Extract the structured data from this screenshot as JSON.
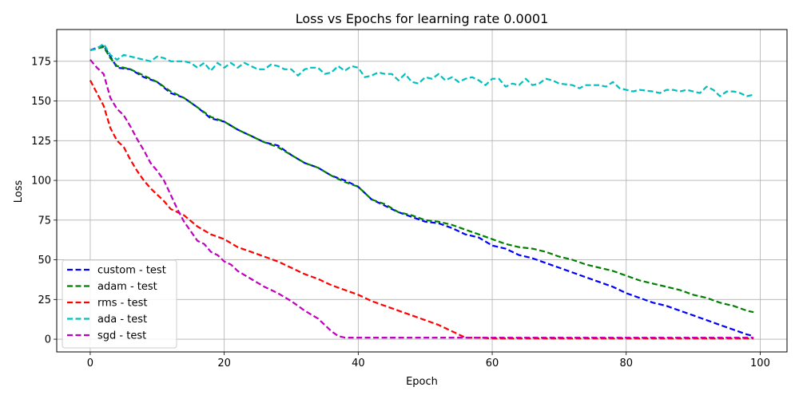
{
  "chart_data": {
    "type": "line",
    "title": "Loss vs Epochs for learning rate 0.0001",
    "xlabel": "Epoch",
    "ylabel": "Loss",
    "xlim": [
      -5,
      104
    ],
    "ylim": [
      -8,
      195
    ],
    "xticks": [
      0,
      20,
      40,
      60,
      80,
      100
    ],
    "yticks": [
      0,
      25,
      50,
      75,
      100,
      125,
      150,
      175
    ],
    "grid": true,
    "legend_position": "lower-left",
    "series": [
      {
        "name": "custom - test",
        "color": "#0000ff",
        "points": [
          [
            0,
            182
          ],
          [
            2,
            185
          ],
          [
            3,
            178
          ],
          [
            4,
            171
          ],
          [
            6,
            170
          ],
          [
            8,
            165
          ],
          [
            10,
            162
          ],
          [
            12,
            155
          ],
          [
            14,
            152
          ],
          [
            16,
            146
          ],
          [
            18,
            139
          ],
          [
            20,
            137
          ],
          [
            22,
            132
          ],
          [
            24,
            128
          ],
          [
            26,
            124
          ],
          [
            28,
            122
          ],
          [
            30,
            116
          ],
          [
            32,
            111
          ],
          [
            34,
            108
          ],
          [
            36,
            103
          ],
          [
            38,
            100
          ],
          [
            40,
            96
          ],
          [
            42,
            88
          ],
          [
            44,
            84
          ],
          [
            46,
            80
          ],
          [
            48,
            77
          ],
          [
            50,
            74
          ],
          [
            52,
            73
          ],
          [
            54,
            70
          ],
          [
            56,
            66
          ],
          [
            58,
            64
          ],
          [
            60,
            59
          ],
          [
            62,
            57
          ],
          [
            64,
            53
          ],
          [
            66,
            51
          ],
          [
            68,
            48
          ],
          [
            70,
            45
          ],
          [
            72,
            42
          ],
          [
            74,
            39
          ],
          [
            76,
            36
          ],
          [
            78,
            33
          ],
          [
            80,
            29
          ],
          [
            82,
            26
          ],
          [
            84,
            23
          ],
          [
            86,
            21
          ],
          [
            88,
            18
          ],
          [
            90,
            15
          ],
          [
            92,
            12
          ],
          [
            94,
            9
          ],
          [
            96,
            6
          ],
          [
            98,
            3
          ],
          [
            99,
            2
          ]
        ]
      },
      {
        "name": "adam - test",
        "color": "#008000",
        "points": [
          [
            0,
            182
          ],
          [
            2,
            184
          ],
          [
            3,
            177
          ],
          [
            4,
            172
          ],
          [
            6,
            170
          ],
          [
            8,
            166
          ],
          [
            10,
            162
          ],
          [
            12,
            156
          ],
          [
            14,
            152
          ],
          [
            16,
            146
          ],
          [
            18,
            140
          ],
          [
            20,
            137
          ],
          [
            22,
            132
          ],
          [
            24,
            128
          ],
          [
            26,
            124
          ],
          [
            28,
            121
          ],
          [
            30,
            116
          ],
          [
            32,
            111
          ],
          [
            34,
            108
          ],
          [
            36,
            103
          ],
          [
            38,
            99
          ],
          [
            40,
            96
          ],
          [
            42,
            88
          ],
          [
            44,
            85
          ],
          [
            46,
            80
          ],
          [
            48,
            78
          ],
          [
            50,
            75
          ],
          [
            52,
            74
          ],
          [
            54,
            72
          ],
          [
            56,
            69
          ],
          [
            58,
            66
          ],
          [
            60,
            63
          ],
          [
            62,
            60
          ],
          [
            64,
            58
          ],
          [
            66,
            57
          ],
          [
            68,
            55
          ],
          [
            70,
            52
          ],
          [
            72,
            50
          ],
          [
            74,
            47
          ],
          [
            76,
            45
          ],
          [
            78,
            43
          ],
          [
            80,
            40
          ],
          [
            82,
            37
          ],
          [
            84,
            35
          ],
          [
            86,
            33
          ],
          [
            88,
            31
          ],
          [
            90,
            28
          ],
          [
            92,
            26
          ],
          [
            94,
            23
          ],
          [
            96,
            21
          ],
          [
            98,
            18
          ],
          [
            99,
            17
          ]
        ]
      },
      {
        "name": "rms - test",
        "color": "#ff0000",
        "points": [
          [
            0,
            163
          ],
          [
            1,
            155
          ],
          [
            2,
            147
          ],
          [
            3,
            133
          ],
          [
            4,
            125
          ],
          [
            5,
            121
          ],
          [
            6,
            113
          ],
          [
            7,
            106
          ],
          [
            8,
            100
          ],
          [
            9,
            95
          ],
          [
            10,
            91
          ],
          [
            11,
            87
          ],
          [
            12,
            82
          ],
          [
            14,
            78
          ],
          [
            16,
            71
          ],
          [
            18,
            66
          ],
          [
            20,
            63
          ],
          [
            22,
            58
          ],
          [
            24,
            55
          ],
          [
            26,
            52
          ],
          [
            28,
            49
          ],
          [
            30,
            45
          ],
          [
            32,
            41
          ],
          [
            34,
            38
          ],
          [
            36,
            34
          ],
          [
            38,
            31
          ],
          [
            40,
            28
          ],
          [
            42,
            24
          ],
          [
            44,
            21
          ],
          [
            46,
            18
          ],
          [
            48,
            15
          ],
          [
            50,
            12
          ],
          [
            52,
            9
          ],
          [
            54,
            5
          ],
          [
            56,
            1
          ],
          [
            58,
            1
          ],
          [
            60,
            0.5
          ],
          [
            70,
            0.5
          ],
          [
            80,
            0.5
          ],
          [
            90,
            0.5
          ],
          [
            99,
            0.5
          ]
        ]
      },
      {
        "name": "ada - test",
        "color": "#00bfbf",
        "points": [
          [
            0,
            182
          ],
          [
            1,
            183
          ],
          [
            2,
            186
          ],
          [
            3,
            179
          ],
          [
            4,
            176
          ],
          [
            5,
            179
          ],
          [
            6,
            178
          ],
          [
            7,
            177
          ],
          [
            8,
            176
          ],
          [
            9,
            175
          ],
          [
            10,
            178
          ],
          [
            11,
            177
          ],
          [
            12,
            175
          ],
          [
            14,
            175
          ],
          [
            15,
            174
          ],
          [
            16,
            171
          ],
          [
            17,
            174
          ],
          [
            18,
            169
          ],
          [
            19,
            174
          ],
          [
            20,
            171
          ],
          [
            21,
            174
          ],
          [
            22,
            171
          ],
          [
            23,
            174
          ],
          [
            24,
            172
          ],
          [
            25,
            170
          ],
          [
            26,
            170
          ],
          [
            27,
            173
          ],
          [
            28,
            172
          ],
          [
            29,
            170
          ],
          [
            30,
            170
          ],
          [
            31,
            166
          ],
          [
            32,
            170
          ],
          [
            33,
            171
          ],
          [
            34,
            171
          ],
          [
            35,
            167
          ],
          [
            36,
            168
          ],
          [
            37,
            172
          ],
          [
            38,
            169
          ],
          [
            39,
            172
          ],
          [
            40,
            171
          ],
          [
            41,
            165
          ],
          [
            42,
            166
          ],
          [
            43,
            168
          ],
          [
            44,
            167
          ],
          [
            45,
            167
          ],
          [
            46,
            163
          ],
          [
            47,
            167
          ],
          [
            48,
            162
          ],
          [
            49,
            161
          ],
          [
            50,
            165
          ],
          [
            51,
            164
          ],
          [
            52,
            167
          ],
          [
            53,
            163
          ],
          [
            54,
            165
          ],
          [
            55,
            162
          ],
          [
            56,
            164
          ],
          [
            57,
            165
          ],
          [
            58,
            163
          ],
          [
            59,
            160
          ],
          [
            60,
            164
          ],
          [
            61,
            164
          ],
          [
            62,
            159
          ],
          [
            63,
            161
          ],
          [
            64,
            160
          ],
          [
            65,
            164
          ],
          [
            66,
            160
          ],
          [
            67,
            161
          ],
          [
            68,
            164
          ],
          [
            69,
            163
          ],
          [
            70,
            161
          ],
          [
            72,
            160
          ],
          [
            73,
            158
          ],
          [
            74,
            160
          ],
          [
            76,
            160
          ],
          [
            77,
            159
          ],
          [
            78,
            162
          ],
          [
            79,
            158
          ],
          [
            80,
            157
          ],
          [
            81,
            156
          ],
          [
            82,
            157
          ],
          [
            84,
            156
          ],
          [
            85,
            155
          ],
          [
            86,
            157
          ],
          [
            87,
            157
          ],
          [
            88,
            156
          ],
          [
            89,
            157
          ],
          [
            90,
            156
          ],
          [
            91,
            155
          ],
          [
            92,
            159
          ],
          [
            93,
            157
          ],
          [
            94,
            153
          ],
          [
            95,
            156
          ],
          [
            96,
            156
          ],
          [
            97,
            155
          ],
          [
            98,
            153
          ],
          [
            99,
            154
          ]
        ]
      },
      {
        "name": "sgd - test",
        "color": "#bf00bf",
        "points": [
          [
            0,
            176
          ],
          [
            1,
            171
          ],
          [
            2,
            167
          ],
          [
            3,
            152
          ],
          [
            4,
            145
          ],
          [
            5,
            141
          ],
          [
            6,
            134
          ],
          [
            7,
            126
          ],
          [
            8,
            119
          ],
          [
            9,
            111
          ],
          [
            10,
            106
          ],
          [
            11,
            100
          ],
          [
            12,
            91
          ],
          [
            13,
            82
          ],
          [
            14,
            74
          ],
          [
            15,
            68
          ],
          [
            16,
            62
          ],
          [
            17,
            60
          ],
          [
            18,
            55
          ],
          [
            19,
            53
          ],
          [
            20,
            49
          ],
          [
            21,
            47
          ],
          [
            22,
            43
          ],
          [
            24,
            38
          ],
          [
            26,
            33
          ],
          [
            28,
            29
          ],
          [
            30,
            24
          ],
          [
            32,
            18
          ],
          [
            34,
            13
          ],
          [
            35,
            9
          ],
          [
            36,
            5
          ],
          [
            37,
            2
          ],
          [
            38,
            1
          ],
          [
            40,
            1
          ],
          [
            50,
            1
          ],
          [
            60,
            1
          ],
          [
            70,
            1
          ],
          [
            80,
            1
          ],
          [
            90,
            1
          ],
          [
            99,
            1
          ]
        ]
      }
    ]
  }
}
